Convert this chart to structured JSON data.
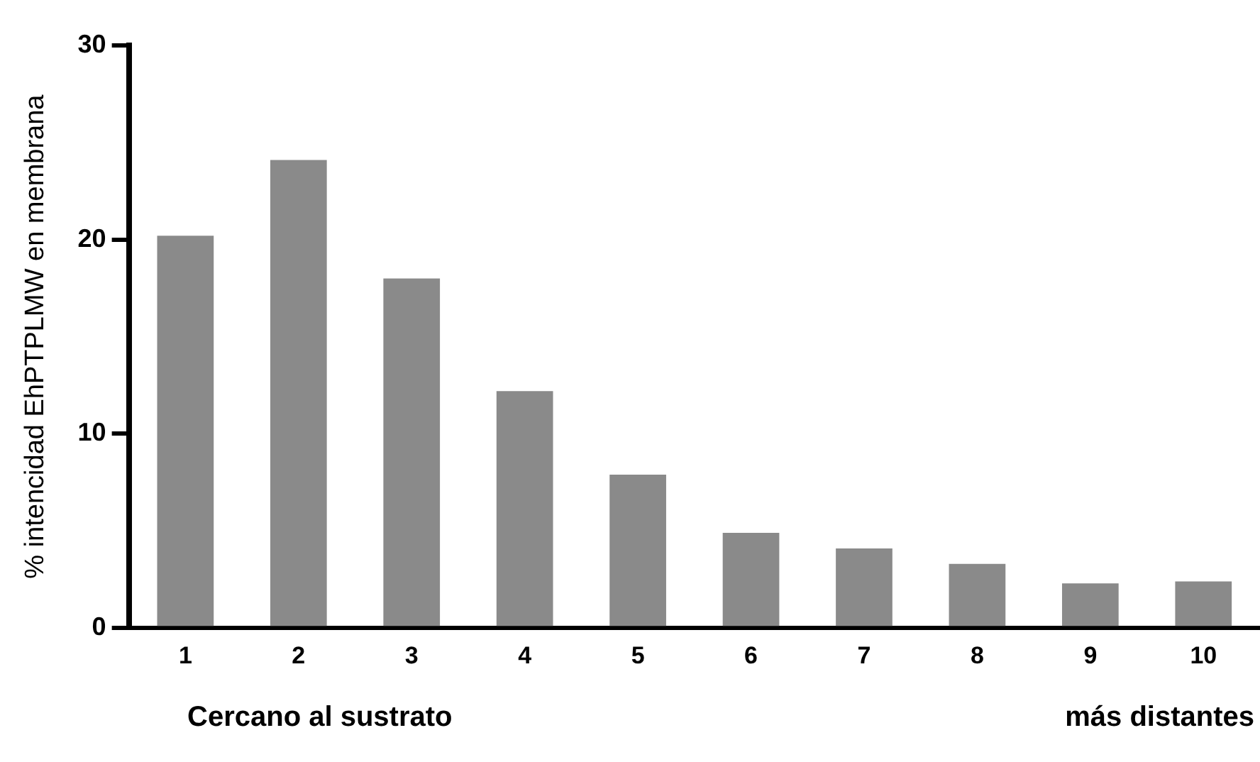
{
  "chart_data": {
    "type": "bar",
    "ylabel": "% intencidad EhPTPLMW en membrana",
    "categories": [
      "1",
      "2",
      "3",
      "4",
      "5",
      "6",
      "7",
      "8",
      "9",
      "10"
    ],
    "values": [
      20.2,
      24.1,
      18.0,
      12.2,
      7.9,
      4.9,
      4.1,
      3.3,
      2.3,
      2.4
    ],
    "color": "#8a8a8a",
    "ylim": [
      0,
      30
    ],
    "yticks": [
      0,
      10,
      20,
      30
    ],
    "grid": false,
    "legend": false,
    "annotations": [
      "Cercano al sustrato",
      "más distantes"
    ]
  }
}
